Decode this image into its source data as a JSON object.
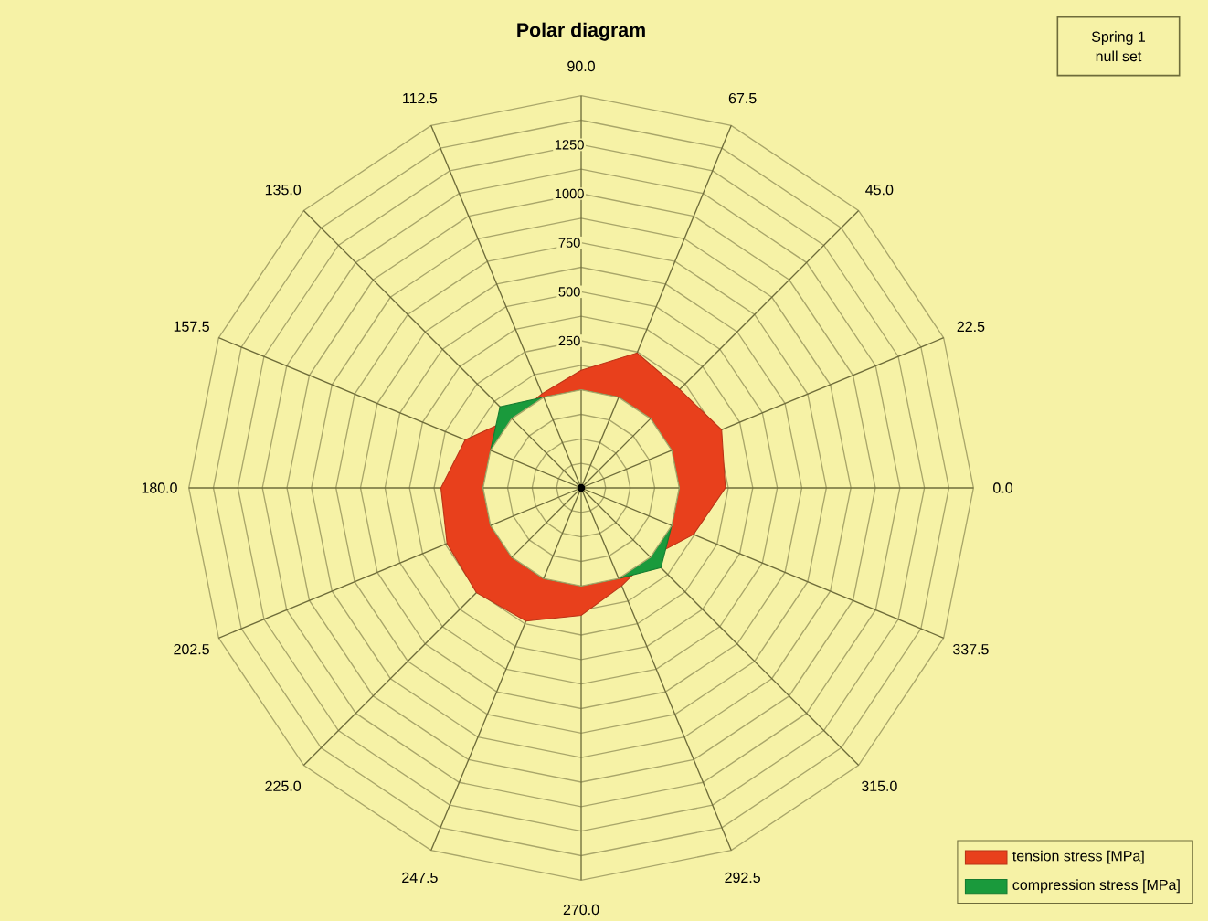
{
  "chart_data": {
    "type": "radar",
    "title": "Polar diagram",
    "categories": [
      "90.0",
      "67.5",
      "45.0",
      "22.5",
      "0.0",
      "337.5",
      "315.0",
      "292.5",
      "270.0",
      "247.5",
      "225.0",
      "202.5",
      "180.0",
      "157.5",
      "135.0",
      "112.5"
    ],
    "series": [
      {
        "name": "tension stress [MPa]",
        "color": "#e8401c",
        "values": [
          100,
          245,
          210,
          275,
          235,
          120,
          0,
          40,
          150,
          235,
          255,
          240,
          215,
          140,
          0,
          20
        ]
      },
      {
        "name": "compression stress [MPa]",
        "color": "#1a9a3c",
        "values": [
          0,
          0,
          0,
          0,
          0,
          0,
          75,
          0,
          0,
          0,
          0,
          0,
          0,
          0,
          85,
          0
        ]
      }
    ],
    "ylim": [
      -500,
      1500
    ],
    "yticks": [
      250,
      500,
      750,
      1000,
      1250
    ],
    "grid": true,
    "legend": "bottom right",
    "annotations": [
      "Spring 1",
      "null set"
    ]
  }
}
